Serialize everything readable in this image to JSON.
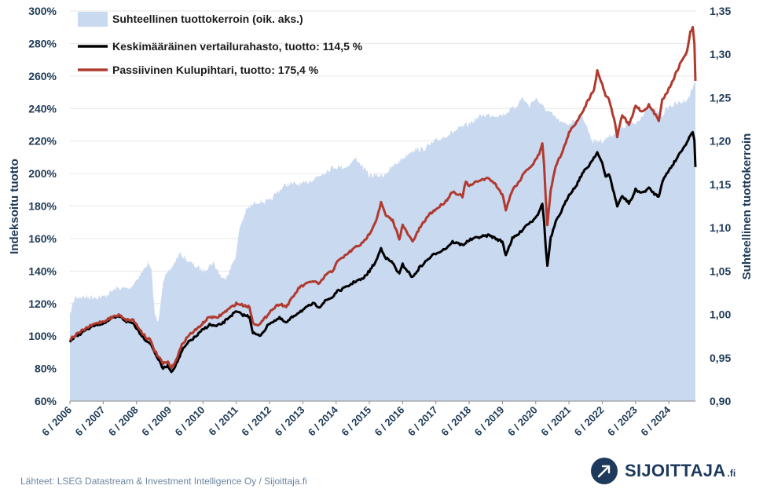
{
  "chart_data": {
    "type": "line",
    "title": "",
    "ylabel": "Indeksoitu tuotto",
    "y2label": "Suhteellinen tuottokerroin",
    "ylim": [
      60,
      300
    ],
    "y2lim": [
      0.9,
      1.35
    ],
    "yticks": [
      "60%",
      "80%",
      "100%",
      "120%",
      "140%",
      "160%",
      "180%",
      "200%",
      "220%",
      "240%",
      "260%",
      "280%",
      "300%"
    ],
    "y2ticks": [
      "0,90",
      "0,95",
      "1,00",
      "1,05",
      "1,10",
      "1,15",
      "1,20",
      "1,25",
      "1,30",
      "1,35"
    ],
    "xticks": [
      "6 / 2006",
      "6 / 2007",
      "6 / 2008",
      "6 / 2009",
      "6 / 2010",
      "6 / 2011",
      "6 / 2012",
      "6 / 2013",
      "6 / 2014",
      "6 / 2015",
      "6 / 2016",
      "6 / 2017",
      "6 / 2018",
      "6 / 2019",
      "6 / 2020",
      "6 / 2021",
      "6 / 2022",
      "6 / 2023",
      "6 / 2024"
    ],
    "xrange": [
      2006.0,
      2024.8
    ],
    "legend_position": "top-left",
    "series": [
      {
        "name": "Suhteellinen tuottokerroin (oik. aks.)",
        "axis": "right",
        "style": "area",
        "color": "#c9d9f0",
        "points": [
          [
            2006.0,
            1.0
          ],
          [
            2006.15,
            1.02
          ],
          [
            2006.5,
            1.02
          ],
          [
            2007.0,
            1.02
          ],
          [
            2007.4,
            1.03
          ],
          [
            2007.8,
            1.03
          ],
          [
            2008.0,
            1.04
          ],
          [
            2008.2,
            1.05
          ],
          [
            2008.35,
            1.06
          ],
          [
            2008.45,
            1.05
          ],
          [
            2008.55,
            1.0
          ],
          [
            2008.65,
            0.99
          ],
          [
            2008.8,
            1.04
          ],
          [
            2009.0,
            1.05
          ],
          [
            2009.3,
            1.07
          ],
          [
            2009.6,
            1.06
          ],
          [
            2010.0,
            1.05
          ],
          [
            2010.3,
            1.06
          ],
          [
            2010.6,
            1.04
          ],
          [
            2010.8,
            1.05
          ],
          [
            2011.0,
            1.07
          ],
          [
            2011.1,
            1.1
          ],
          [
            2011.3,
            1.12
          ],
          [
            2011.6,
            1.13
          ],
          [
            2012.0,
            1.13
          ],
          [
            2012.2,
            1.14
          ],
          [
            2012.5,
            1.15
          ],
          [
            2013.0,
            1.15
          ],
          [
            2013.5,
            1.16
          ],
          [
            2013.9,
            1.17
          ],
          [
            2014.3,
            1.17
          ],
          [
            2014.6,
            1.18
          ],
          [
            2014.8,
            1.17
          ],
          [
            2015.0,
            1.16
          ],
          [
            2015.4,
            1.16
          ],
          [
            2015.7,
            1.17
          ],
          [
            2016.0,
            1.18
          ],
          [
            2016.3,
            1.19
          ],
          [
            2016.6,
            1.19
          ],
          [
            2017.0,
            1.2
          ],
          [
            2017.5,
            1.21
          ],
          [
            2018.0,
            1.22
          ],
          [
            2018.4,
            1.23
          ],
          [
            2018.8,
            1.23
          ],
          [
            2019.0,
            1.23
          ],
          [
            2019.4,
            1.24
          ],
          [
            2019.6,
            1.25
          ],
          [
            2019.8,
            1.24
          ],
          [
            2020.0,
            1.25
          ],
          [
            2020.2,
            1.24
          ],
          [
            2020.5,
            1.23
          ],
          [
            2020.8,
            1.22
          ],
          [
            2021.0,
            1.22
          ],
          [
            2021.4,
            1.23
          ],
          [
            2021.7,
            1.2
          ],
          [
            2022.0,
            1.2
          ],
          [
            2022.4,
            1.21
          ],
          [
            2022.8,
            1.22
          ],
          [
            2023.0,
            1.22
          ],
          [
            2023.4,
            1.24
          ],
          [
            2023.8,
            1.23
          ],
          [
            2024.0,
            1.24
          ],
          [
            2024.4,
            1.245
          ],
          [
            2024.6,
            1.25
          ],
          [
            2024.8,
            1.27
          ]
        ]
      },
      {
        "name": "Keskimääräinen vertailurahasto, tuotto: 114,5 %",
        "axis": "left",
        "style": "line",
        "color": "#000000",
        "points": [
          [
            2006.0,
            97
          ],
          [
            2006.2,
            100
          ],
          [
            2006.5,
            104
          ],
          [
            2006.8,
            107
          ],
          [
            2007.0,
            108
          ],
          [
            2007.3,
            111
          ],
          [
            2007.5,
            112
          ],
          [
            2007.7,
            109
          ],
          [
            2007.9,
            108
          ],
          [
            2008.1,
            102
          ],
          [
            2008.3,
            97
          ],
          [
            2008.4,
            96
          ],
          [
            2008.55,
            90
          ],
          [
            2008.7,
            84
          ],
          [
            2008.8,
            80
          ],
          [
            2008.95,
            82
          ],
          [
            2009.05,
            78
          ],
          [
            2009.2,
            83
          ],
          [
            2009.4,
            92
          ],
          [
            2009.6,
            97
          ],
          [
            2009.8,
            100
          ],
          [
            2010.0,
            104
          ],
          [
            2010.2,
            107
          ],
          [
            2010.4,
            106
          ],
          [
            2010.6,
            108
          ],
          [
            2010.8,
            112
          ],
          [
            2011.0,
            115
          ],
          [
            2011.2,
            113
          ],
          [
            2011.4,
            112
          ],
          [
            2011.5,
            102
          ],
          [
            2011.7,
            100
          ],
          [
            2011.9,
            105
          ],
          [
            2012.0,
            108
          ],
          [
            2012.3,
            111
          ],
          [
            2012.5,
            108
          ],
          [
            2012.7,
            112
          ],
          [
            2012.9,
            115
          ],
          [
            2013.0,
            116
          ],
          [
            2013.3,
            120
          ],
          [
            2013.5,
            118
          ],
          [
            2013.7,
            122
          ],
          [
            2013.9,
            124
          ],
          [
            2014.0,
            127
          ],
          [
            2014.3,
            130
          ],
          [
            2014.6,
            134
          ],
          [
            2014.8,
            135
          ],
          [
            2015.0,
            140
          ],
          [
            2015.2,
            146
          ],
          [
            2015.35,
            154
          ],
          [
            2015.5,
            148
          ],
          [
            2015.7,
            145
          ],
          [
            2015.9,
            138
          ],
          [
            2016.0,
            144
          ],
          [
            2016.15,
            140
          ],
          [
            2016.3,
            136
          ],
          [
            2016.5,
            142
          ],
          [
            2016.8,
            148
          ],
          [
            2017.0,
            151
          ],
          [
            2017.3,
            154
          ],
          [
            2017.5,
            158
          ],
          [
            2017.8,
            156
          ],
          [
            2018.0,
            159
          ],
          [
            2018.3,
            161
          ],
          [
            2018.6,
            162
          ],
          [
            2018.8,
            160
          ],
          [
            2019.0,
            158
          ],
          [
            2019.1,
            150
          ],
          [
            2019.3,
            160
          ],
          [
            2019.5,
            163
          ],
          [
            2019.7,
            168
          ],
          [
            2019.9,
            171
          ],
          [
            2020.1,
            176
          ],
          [
            2020.2,
            182
          ],
          [
            2020.25,
            170
          ],
          [
            2020.3,
            155
          ],
          [
            2020.35,
            143
          ],
          [
            2020.45,
            160
          ],
          [
            2020.6,
            170
          ],
          [
            2020.8,
            178
          ],
          [
            2021.0,
            187
          ],
          [
            2021.2,
            192
          ],
          [
            2021.4,
            200
          ],
          [
            2021.6,
            205
          ],
          [
            2021.75,
            210
          ],
          [
            2021.85,
            213
          ],
          [
            2022.0,
            206
          ],
          [
            2022.1,
            198
          ],
          [
            2022.2,
            200
          ],
          [
            2022.35,
            188
          ],
          [
            2022.45,
            180
          ],
          [
            2022.6,
            186
          ],
          [
            2022.8,
            182
          ],
          [
            2022.9,
            185
          ],
          [
            2023.0,
            190
          ],
          [
            2023.2,
            188
          ],
          [
            2023.4,
            191
          ],
          [
            2023.6,
            187
          ],
          [
            2023.7,
            186
          ],
          [
            2023.8,
            195
          ],
          [
            2024.0,
            202
          ],
          [
            2024.2,
            208
          ],
          [
            2024.4,
            215
          ],
          [
            2024.55,
            219
          ],
          [
            2024.65,
            224
          ],
          [
            2024.72,
            226
          ],
          [
            2024.77,
            220
          ],
          [
            2024.8,
            204
          ]
        ]
      },
      {
        "name": "Passiivinen Kulupihtari, tuotto: 175,4 %",
        "axis": "left",
        "style": "line",
        "color": "#b03a2e",
        "points": [
          [
            2006.0,
            98
          ],
          [
            2006.2,
            101
          ],
          [
            2006.5,
            105
          ],
          [
            2006.8,
            108
          ],
          [
            2007.0,
            109
          ],
          [
            2007.3,
            112
          ],
          [
            2007.5,
            113
          ],
          [
            2007.7,
            110
          ],
          [
            2007.9,
            110
          ],
          [
            2008.1,
            104
          ],
          [
            2008.3,
            99
          ],
          [
            2008.4,
            98
          ],
          [
            2008.55,
            91
          ],
          [
            2008.7,
            86
          ],
          [
            2008.8,
            83
          ],
          [
            2008.95,
            84
          ],
          [
            2009.05,
            80
          ],
          [
            2009.2,
            86
          ],
          [
            2009.4,
            96
          ],
          [
            2009.6,
            101
          ],
          [
            2009.8,
            104
          ],
          [
            2010.0,
            108
          ],
          [
            2010.2,
            112
          ],
          [
            2010.4,
            111
          ],
          [
            2010.6,
            114
          ],
          [
            2010.8,
            117
          ],
          [
            2011.0,
            120
          ],
          [
            2011.2,
            119
          ],
          [
            2011.4,
            118
          ],
          [
            2011.5,
            108
          ],
          [
            2011.7,
            107
          ],
          [
            2011.9,
            112
          ],
          [
            2012.0,
            115
          ],
          [
            2012.3,
            120
          ],
          [
            2012.5,
            118
          ],
          [
            2012.7,
            124
          ],
          [
            2012.9,
            130
          ],
          [
            2013.0,
            131
          ],
          [
            2013.3,
            134
          ],
          [
            2013.5,
            132
          ],
          [
            2013.7,
            138
          ],
          [
            2013.9,
            140
          ],
          [
            2014.0,
            145
          ],
          [
            2014.3,
            150
          ],
          [
            2014.6,
            155
          ],
          [
            2014.8,
            157
          ],
          [
            2015.0,
            163
          ],
          [
            2015.2,
            171
          ],
          [
            2015.35,
            182
          ],
          [
            2015.5,
            174
          ],
          [
            2015.7,
            171
          ],
          [
            2015.9,
            160
          ],
          [
            2016.0,
            168
          ],
          [
            2016.15,
            163
          ],
          [
            2016.3,
            158
          ],
          [
            2016.5,
            166
          ],
          [
            2016.8,
            175
          ],
          [
            2017.0,
            178
          ],
          [
            2017.3,
            183
          ],
          [
            2017.5,
            189
          ],
          [
            2017.8,
            186
          ],
          [
            2017.9,
            195
          ],
          [
            2018.0,
            192
          ],
          [
            2018.3,
            196
          ],
          [
            2018.6,
            197
          ],
          [
            2018.8,
            193
          ],
          [
            2019.0,
            187
          ],
          [
            2019.1,
            178
          ],
          [
            2019.3,
            190
          ],
          [
            2019.5,
            195
          ],
          [
            2019.7,
            202
          ],
          [
            2019.9,
            205
          ],
          [
            2020.1,
            212
          ],
          [
            2020.2,
            219
          ],
          [
            2020.25,
            205
          ],
          [
            2020.3,
            185
          ],
          [
            2020.35,
            168
          ],
          [
            2020.45,
            190
          ],
          [
            2020.6,
            205
          ],
          [
            2020.8,
            213
          ],
          [
            2021.0,
            225
          ],
          [
            2021.2,
            231
          ],
          [
            2021.4,
            238
          ],
          [
            2021.6,
            246
          ],
          [
            2021.75,
            252
          ],
          [
            2021.85,
            263
          ],
          [
            2022.0,
            255
          ],
          [
            2022.1,
            248
          ],
          [
            2022.2,
            246
          ],
          [
            2022.35,
            234
          ],
          [
            2022.45,
            223
          ],
          [
            2022.6,
            236
          ],
          [
            2022.8,
            230
          ],
          [
            2022.9,
            235
          ],
          [
            2023.0,
            242
          ],
          [
            2023.2,
            238
          ],
          [
            2023.4,
            242
          ],
          [
            2023.6,
            236
          ],
          [
            2023.7,
            233
          ],
          [
            2023.8,
            245
          ],
          [
            2024.0,
            252
          ],
          [
            2024.2,
            261
          ],
          [
            2024.4,
            270
          ],
          [
            2024.55,
            275
          ],
          [
            2024.65,
            287
          ],
          [
            2024.72,
            290
          ],
          [
            2024.77,
            280
          ],
          [
            2024.8,
            257
          ]
        ]
      }
    ]
  },
  "footer": {
    "source": "Lähteet: LSEG Datastream & Investment Intelligence Oy / Sijoittaja.fi",
    "brand_name": "SIJOITTAJA",
    "brand_suffix": ".fi"
  }
}
